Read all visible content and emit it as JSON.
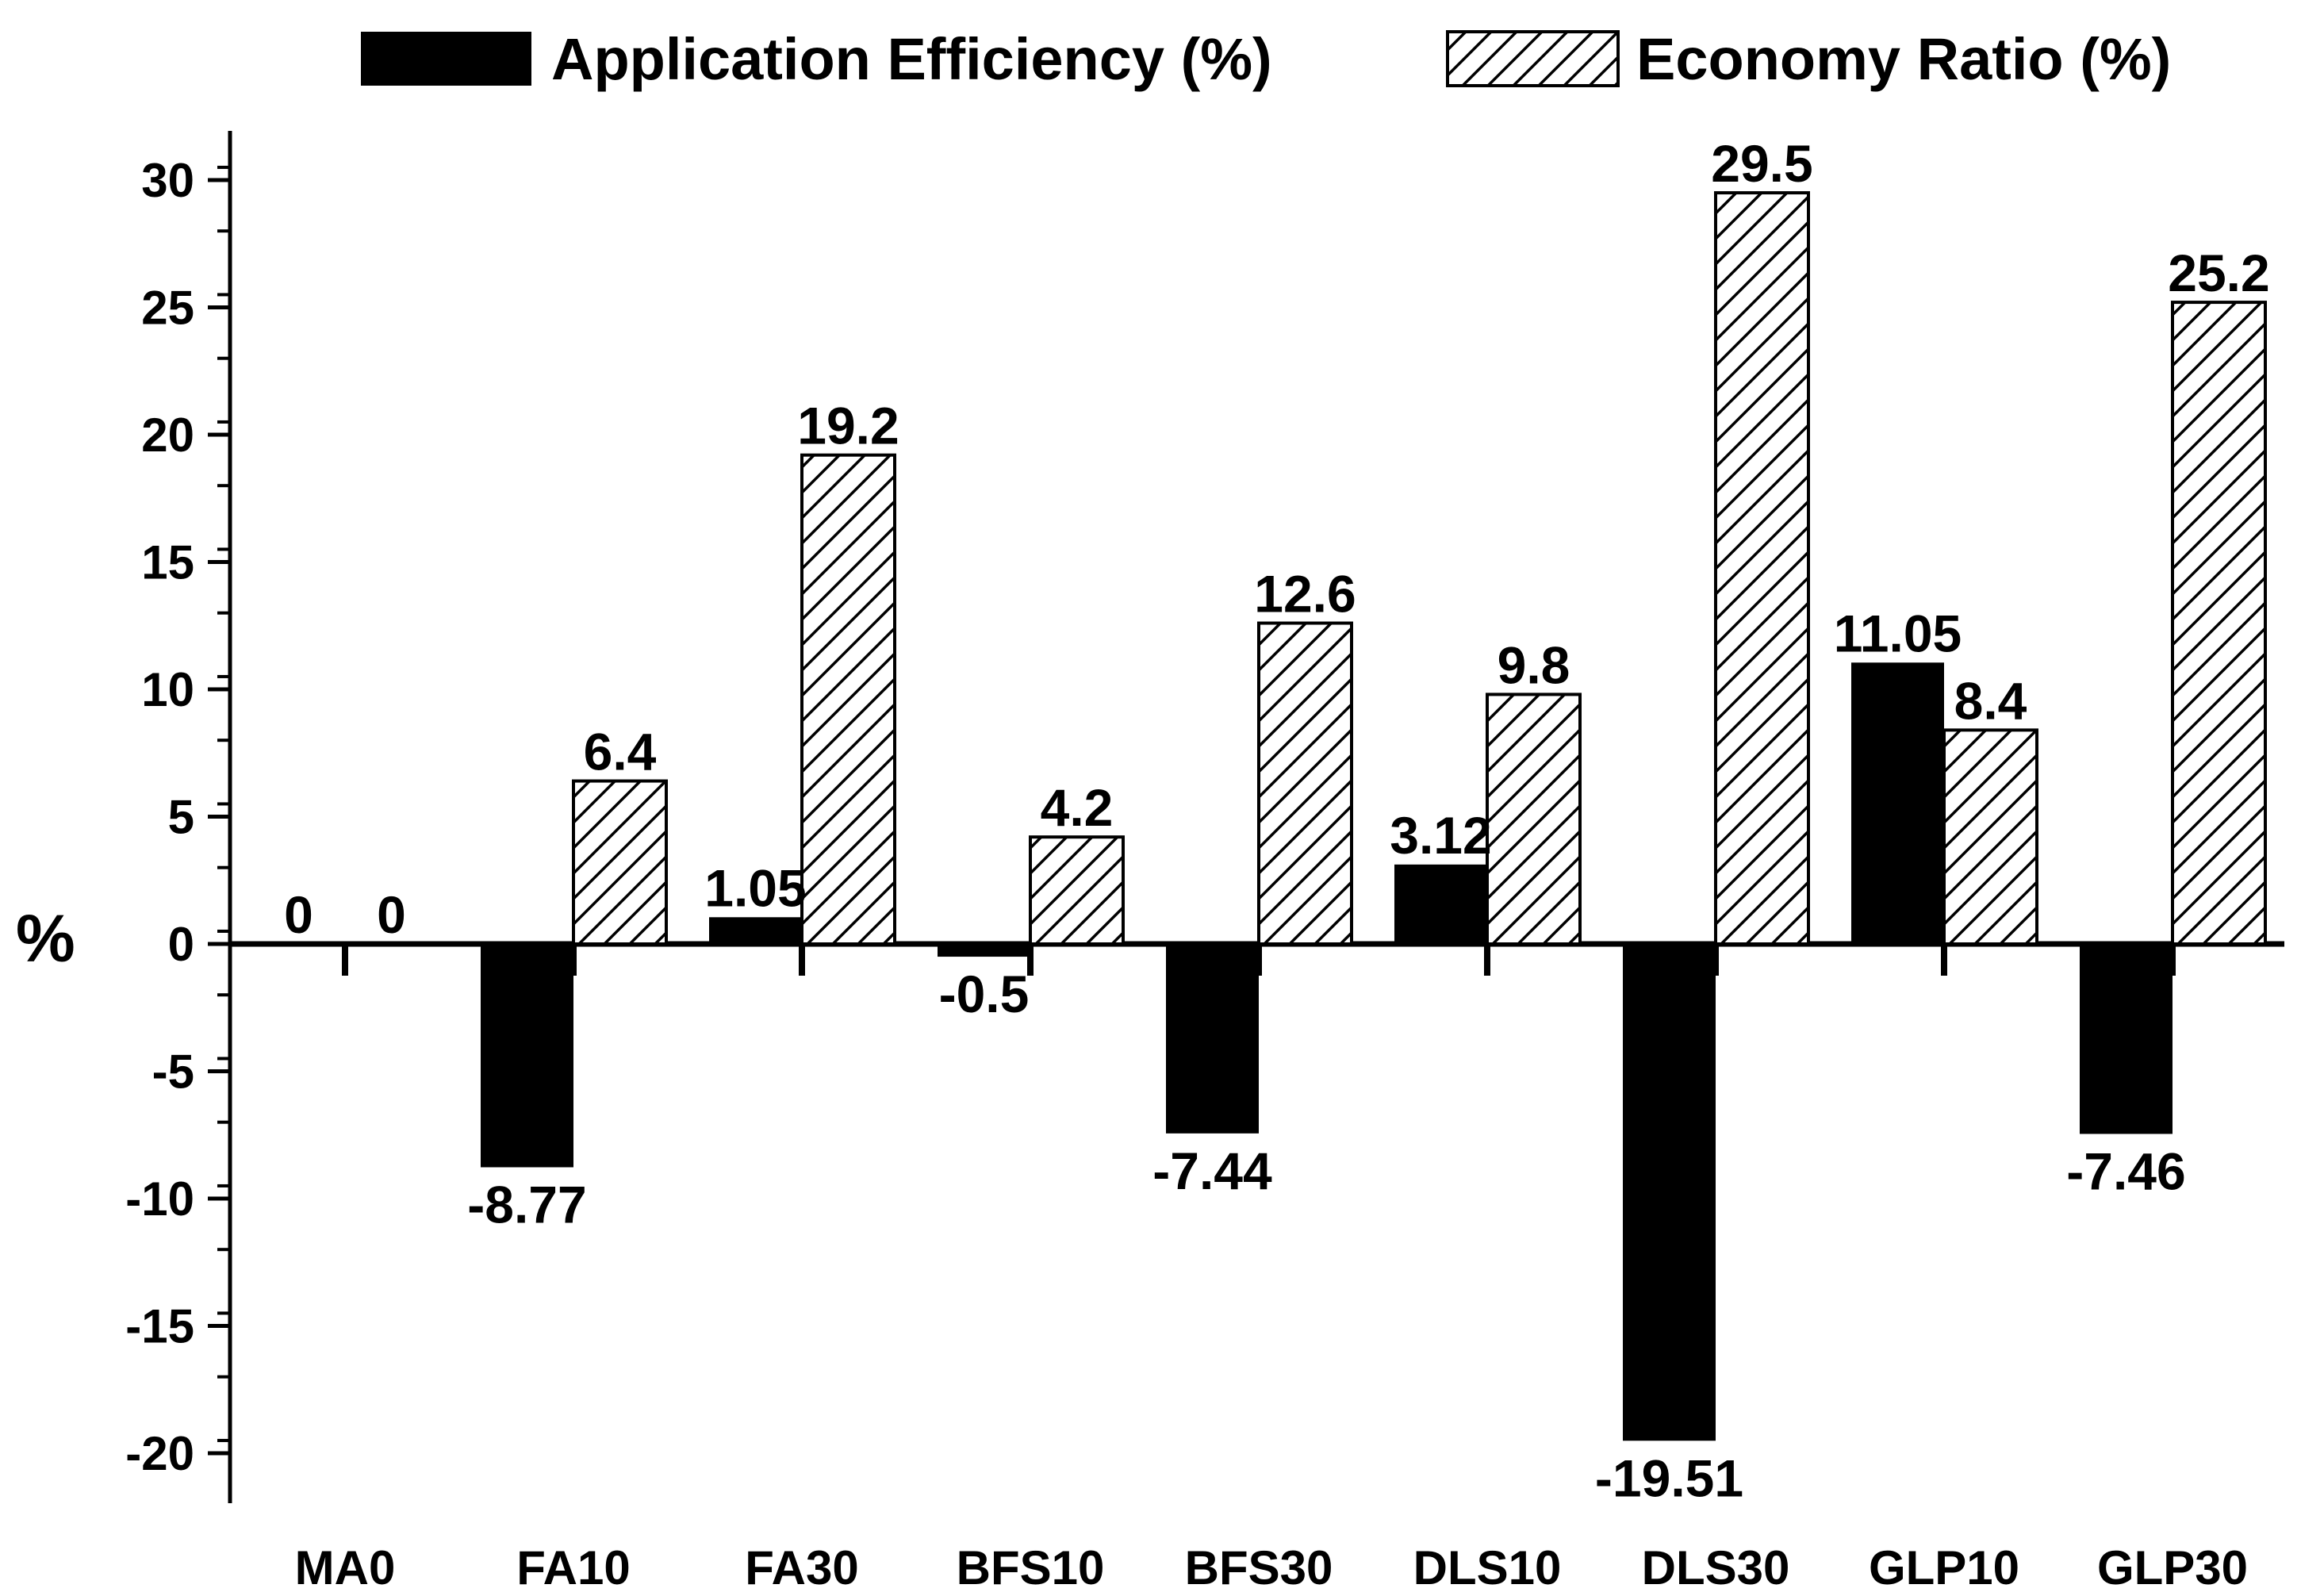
{
  "chart_data": {
    "type": "bar",
    "title": "",
    "xlabel": "",
    "ylabel": "%",
    "ylim": [
      -22,
      32
    ],
    "yticks": [
      30,
      25,
      20,
      15,
      10,
      5,
      0,
      -5,
      -10,
      -15,
      -20
    ],
    "grid": false,
    "legend_position": "top",
    "categories": [
      "MA0",
      "FA10",
      "FA30",
      "BFS10",
      "BFS30",
      "DLS10",
      "DLS30",
      "GLP10",
      "GLP30"
    ],
    "series": [
      {
        "name": "Application Efficiency (%)",
        "style": "solid",
        "color": "#000000",
        "values": [
          0,
          -8.77,
          1.05,
          -0.5,
          -7.44,
          3.12,
          -19.51,
          11.05,
          -7.46
        ],
        "labels": [
          "0",
          "-8.77",
          "1.05",
          "-0.5",
          "-7.44",
          "3.12",
          "-19.51",
          "11.05",
          "-7.46"
        ]
      },
      {
        "name": "Economy Ratio (%)",
        "style": "hatched",
        "color": "#ffffff",
        "values": [
          0,
          6.4,
          19.2,
          4.2,
          12.6,
          9.8,
          29.5,
          8.4,
          25.2
        ],
        "labels": [
          "0",
          "6.4",
          "19.2",
          "4.2",
          "12.6",
          "9.8",
          "29.5",
          "8.4",
          "25.2"
        ]
      }
    ]
  }
}
